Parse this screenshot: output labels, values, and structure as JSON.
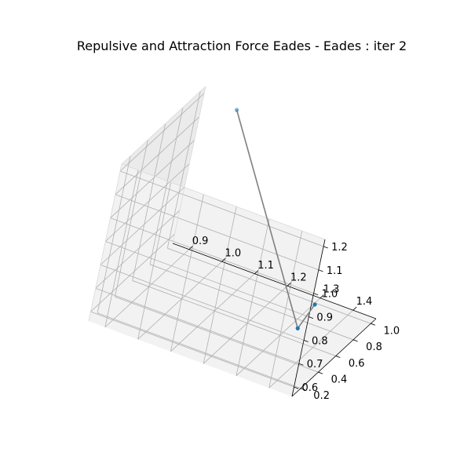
{
  "chart_data": {
    "type": "scatter",
    "projection": "3d",
    "title": "Repulsive and Attraction Force Eades - Eades : iter 2",
    "xlabel": "",
    "ylabel": "",
    "zlabel": "",
    "xlim": [
      0.85,
      1.47
    ],
    "ylim": [
      0.1,
      1.06
    ],
    "zlim": [
      0.56,
      1.23
    ],
    "x_ticks": [
      0.9,
      1.0,
      1.1,
      1.2,
      1.3,
      1.4
    ],
    "x_tick_labels": [
      "0.9",
      "1.0",
      "1.1",
      "1.2",
      "1.3",
      "1.4"
    ],
    "y_ticks": [
      0.2,
      0.4,
      0.6,
      0.8,
      1.0
    ],
    "y_tick_labels": [
      "0.2",
      "0.4",
      "0.6",
      "0.8",
      "1.0"
    ],
    "z_ticks": [
      0.6,
      0.7,
      0.8,
      0.9,
      1.0,
      1.1,
      1.2
    ],
    "z_tick_labels": [
      "0.6",
      "0.7",
      "0.8",
      "0.9",
      "1.0",
      "1.1",
      "1.2"
    ],
    "grid": true,
    "points": [
      {
        "x": 0.96,
        "y": 1.02,
        "z": 1.2
      },
      {
        "x": 1.34,
        "y": 0.63,
        "z": 0.6
      },
      {
        "x": 1.45,
        "y": 0.25,
        "z": 0.89
      }
    ],
    "edges": [
      [
        0,
        1
      ],
      [
        1,
        2
      ]
    ],
    "colors": {
      "point": "#1f77b4",
      "edge": "#808080",
      "pane_floor": "#f2f2f2",
      "pane_wall_left": "#ebebeb",
      "pane_wall_back": "#f2f2f2",
      "grid": "#b0b0b0",
      "axis_line": "#000000"
    }
  }
}
